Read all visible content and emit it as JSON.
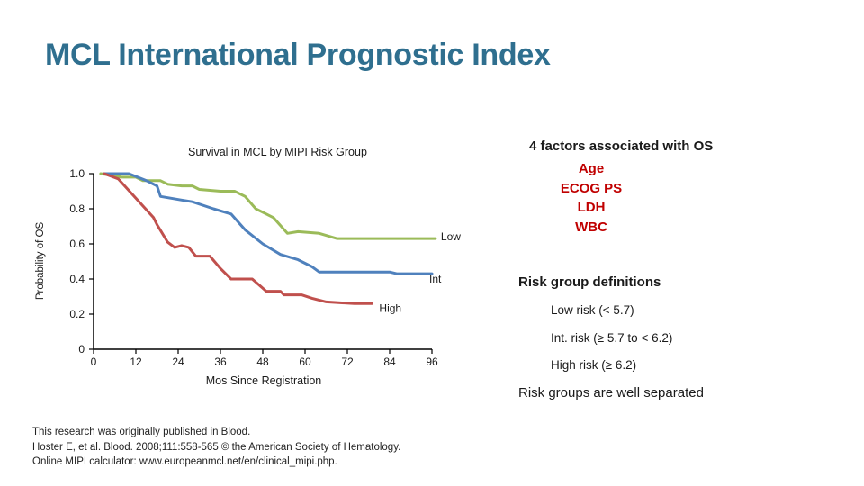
{
  "slide": {
    "title": "MCL International Prognostic Index",
    "factors": {
      "heading": "4 factors associated with OS",
      "items": [
        "Age",
        "ECOG PS",
        "LDH",
        "WBC"
      ]
    },
    "risk_definitions": {
      "heading": "Risk group definitions",
      "low": "Low risk (< 5.7)",
      "int": "Int. risk (≥ 5.7 to < 6.2)",
      "high": "High risk (≥ 6.2)"
    },
    "conclusion": "Risk groups are well separated",
    "citation": [
      "This research was originally published in Blood.",
      "Hoster E, et al. Blood. 2008;111:558-565 © the American Society of Hematology.",
      "Online MIPI calculator: www.europeanmcl.net/en/clinical_mipi.php."
    ]
  },
  "colors": {
    "title": "#2f6f8f",
    "factors": "#c00000",
    "low": "#9bbb59",
    "int": "#4f81bd",
    "high": "#c0504d"
  },
  "chart_data": {
    "type": "line",
    "title": "Survival in MCL by MIPI Risk Group",
    "xlabel": "Mos Since Registration",
    "ylabel": "Probability of OS",
    "xlim": [
      0,
      96
    ],
    "ylim": [
      0,
      1.0
    ],
    "x_ticks": [
      0,
      12,
      24,
      36,
      48,
      60,
      72,
      84,
      96
    ],
    "y_ticks": [
      0,
      0.2,
      0.4,
      0.6,
      0.8,
      1.0
    ],
    "y_tick_labels": [
      "0",
      "0.2",
      "0.4",
      "0.6",
      "0.8",
      "1.0"
    ],
    "series": [
      {
        "name": "Low",
        "color": "#9bbb59",
        "x": [
          2,
          5,
          8,
          12,
          14,
          19,
          21,
          25,
          28,
          30,
          36,
          40,
          43,
          46,
          49,
          51,
          55,
          58,
          64,
          69,
          97
        ],
        "y": [
          1.0,
          0.99,
          0.98,
          0.98,
          0.96,
          0.96,
          0.94,
          0.93,
          0.93,
          0.91,
          0.9,
          0.9,
          0.87,
          0.8,
          0.77,
          0.75,
          0.66,
          0.67,
          0.66,
          0.63,
          0.63
        ]
      },
      {
        "name": "Int",
        "color": "#4f81bd",
        "x": [
          3,
          10,
          15,
          18,
          19,
          22,
          25,
          28,
          34,
          39,
          43,
          48,
          53,
          58,
          62,
          64,
          73,
          84,
          86,
          96
        ],
        "y": [
          1.0,
          1.0,
          0.96,
          0.93,
          0.87,
          0.86,
          0.85,
          0.84,
          0.8,
          0.77,
          0.68,
          0.6,
          0.54,
          0.51,
          0.47,
          0.44,
          0.44,
          0.44,
          0.43,
          0.43
        ]
      },
      {
        "name": "High",
        "color": "#c0504d",
        "x": [
          3,
          7,
          12,
          17,
          18,
          21,
          23,
          25,
          27,
          29,
          33,
          36,
          39,
          45,
          49,
          53,
          54,
          59,
          62,
          66,
          74,
          79
        ],
        "y": [
          1.0,
          0.97,
          0.86,
          0.75,
          0.71,
          0.61,
          0.58,
          0.59,
          0.58,
          0.53,
          0.53,
          0.46,
          0.4,
          0.4,
          0.33,
          0.33,
          0.31,
          0.31,
          0.29,
          0.27,
          0.26,
          0.26
        ]
      }
    ],
    "annotations": [
      {
        "text": "Low",
        "series": "Low"
      },
      {
        "text": "Int",
        "series": "Int"
      },
      {
        "text": "High",
        "series": "High"
      }
    ]
  }
}
